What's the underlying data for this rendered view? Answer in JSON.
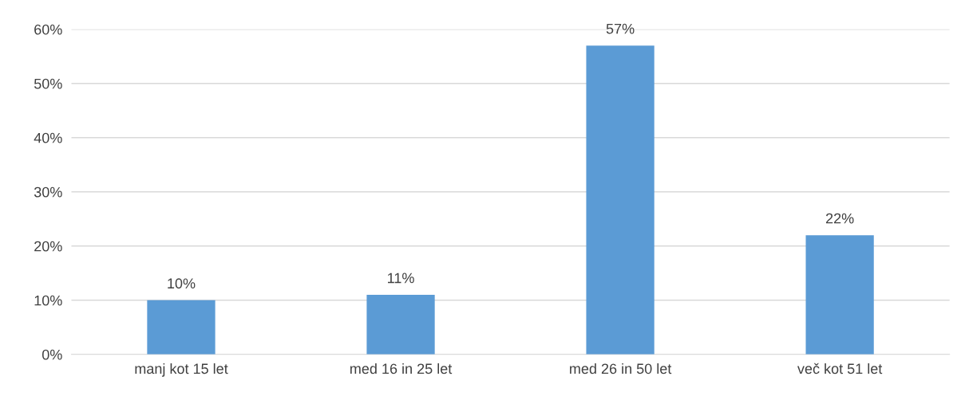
{
  "chart_data": {
    "type": "bar",
    "categories": [
      "manj kot 15 let",
      "med 16 in 25 let",
      "med 26 in 50 let",
      "več kot 51 let"
    ],
    "values": [
      10,
      11,
      57,
      22
    ],
    "value_labels": [
      "10%",
      "11%",
      "57%",
      "22%"
    ],
    "color": "#5b9bd5",
    "ylim": [
      0,
      60
    ],
    "yticks": [
      {
        "value": 0,
        "label": "0%"
      },
      {
        "value": 10,
        "label": "10%"
      },
      {
        "value": 20,
        "label": "20%"
      },
      {
        "value": 30,
        "label": "30%"
      },
      {
        "value": 40,
        "label": "40%"
      },
      {
        "value": 50,
        "label": "50%"
      },
      {
        "value": 60,
        "label": "60%"
      }
    ],
    "grid": "y",
    "legend": false
  }
}
